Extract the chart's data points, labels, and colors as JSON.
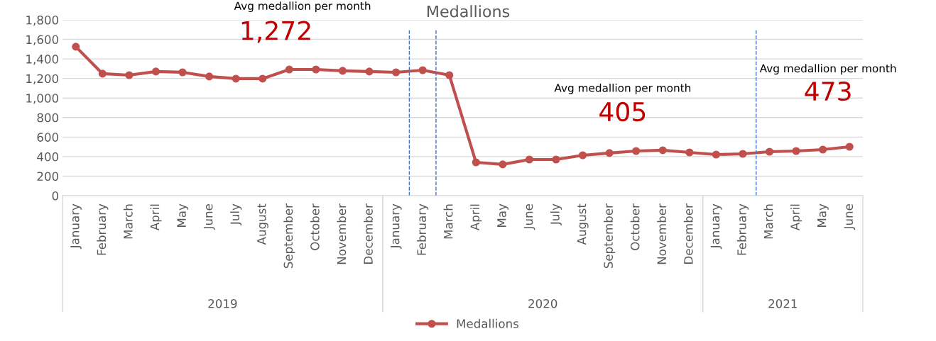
{
  "chart_data": {
    "type": "line",
    "title": "Medallions",
    "categories": [
      "January",
      "February",
      "March",
      "April",
      "May",
      "June",
      "July",
      "August",
      "September",
      "October",
      "November",
      "December",
      "January",
      "February",
      "March",
      "April",
      "May",
      "June",
      "July",
      "August",
      "September",
      "October",
      "November",
      "December",
      "January",
      "February",
      "March",
      "April",
      "May",
      "June"
    ],
    "series": [
      {
        "name": "Medallions",
        "color": "#c0504d",
        "values": [
          1525,
          1249,
          1234,
          1271,
          1263,
          1220,
          1198,
          1198,
          1292,
          1292,
          1278,
          1271,
          1263,
          1285,
          1234,
          341,
          320,
          370,
          370,
          414,
          436,
          457,
          465,
          443,
          421,
          428,
          450,
          457,
          472,
          501
        ]
      }
    ],
    "ylim": [
      0,
      1800
    ],
    "yticks": [
      {
        "value": 0,
        "label": "0"
      },
      {
        "value": 200,
        "label": "200"
      },
      {
        "value": 400,
        "label": "400"
      },
      {
        "value": 600,
        "label": "600"
      },
      {
        "value": 800,
        "label": "800"
      },
      {
        "value": 1000,
        "label": "1,000"
      },
      {
        "value": 1200,
        "label": "1,200"
      },
      {
        "value": 1400,
        "label": "1,400"
      },
      {
        "value": 1600,
        "label": "1,600"
      },
      {
        "value": 1800,
        "label": "1,800"
      }
    ],
    "annotations": [
      "Avg medallion per month",
      "1,272",
      "Avg medallion per month",
      "405",
      "Avg medallion per month",
      "473",
      "2019",
      "2020",
      "2021"
    ],
    "grid": "y",
    "legend": "bottom",
    "marker": "circle",
    "line_style": "solid"
  }
}
